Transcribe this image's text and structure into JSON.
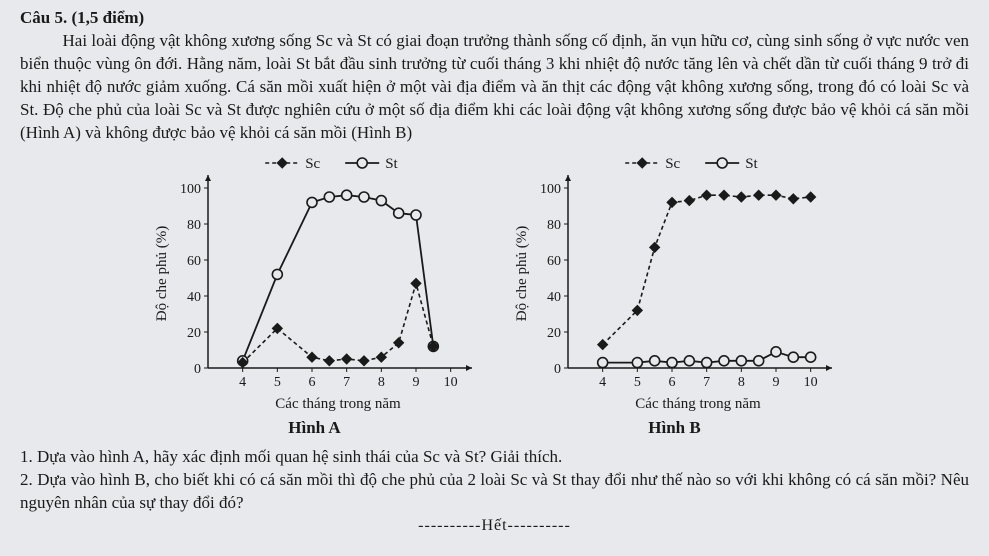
{
  "heading": "Câu 5. (1,5 điểm)",
  "paragraph": "Hai loài động vật không xương sống Sc và St có giai đoạn trưởng thành sống cố định, ăn vụn hữu cơ, cùng sinh sống ở vực nước ven biển thuộc vùng ôn đới. Hằng năm, loài St bắt đầu sinh trưởng từ cuối tháng 3 khi nhiệt độ nước tăng lên và chết dần từ cuối tháng 9 trở đi khi nhiệt độ nước giảm xuống. Cá săn mồi xuất hiện ở một vài địa điểm và ăn thịt các động vật không xương sống, trong đó có loài Sc và St. Độ che phủ của loài Sc và St được nghiên cứu ở một số địa điểm khi các loài động vật không xương sống được bảo vệ khỏi cá săn mồi (Hình A) và không được bảo vệ khỏi cá săn mồi (Hình B)",
  "chartA": {
    "type": "line",
    "title": "Hình A",
    "ylabel": "Độ che phủ (%)",
    "xlabel": "Các tháng trong năm",
    "legend": {
      "sc": "Sc",
      "st": "St"
    },
    "xlim": [
      3,
      10.5
    ],
    "ylim": [
      0,
      105
    ],
    "xticks": [
      4,
      5,
      6,
      7,
      8,
      9,
      10
    ],
    "yticks": [
      0,
      20,
      40,
      60,
      80,
      100
    ],
    "series": {
      "sc": [
        {
          "x": 4,
          "y": 3
        },
        {
          "x": 5,
          "y": 22
        },
        {
          "x": 6,
          "y": 6
        },
        {
          "x": 6.5,
          "y": 4
        },
        {
          "x": 7,
          "y": 5
        },
        {
          "x": 7.5,
          "y": 4
        },
        {
          "x": 8,
          "y": 6
        },
        {
          "x": 8.5,
          "y": 14
        },
        {
          "x": 9,
          "y": 47
        },
        {
          "x": 9.5,
          "y": 12
        }
      ],
      "st": [
        {
          "x": 4,
          "y": 4
        },
        {
          "x": 5,
          "y": 52
        },
        {
          "x": 6,
          "y": 92
        },
        {
          "x": 6.5,
          "y": 95
        },
        {
          "x": 7,
          "y": 96
        },
        {
          "x": 7.5,
          "y": 95
        },
        {
          "x": 8,
          "y": 93
        },
        {
          "x": 8.5,
          "y": 86
        },
        {
          "x": 9,
          "y": 85
        },
        {
          "x": 9.5,
          "y": 12
        }
      ]
    },
    "style": {
      "axis_color": "#1a1a1a",
      "sc_line": "#1a1a1a",
      "sc_marker": "diamond-filled",
      "sc_dash": "4 3",
      "st_line": "#1a1a1a",
      "st_marker": "circle-open",
      "st_dash": "none",
      "marker_size": 5,
      "axis_fontsize": 14,
      "label_fontsize": 15
    }
  },
  "chartB": {
    "type": "line",
    "title": "Hình B",
    "ylabel": "Độ che phủ (%)",
    "xlabel": "Các tháng trong năm",
    "legend": {
      "sc": "Sc",
      "st": "St"
    },
    "xlim": [
      3,
      10.5
    ],
    "ylim": [
      0,
      105
    ],
    "xticks": [
      4,
      5,
      6,
      7,
      8,
      9,
      10
    ],
    "yticks": [
      0,
      20,
      40,
      60,
      80,
      100
    ],
    "series": {
      "sc": [
        {
          "x": 4,
          "y": 13
        },
        {
          "x": 5,
          "y": 32
        },
        {
          "x": 5.5,
          "y": 67
        },
        {
          "x": 6,
          "y": 92
        },
        {
          "x": 6.5,
          "y": 93
        },
        {
          "x": 7,
          "y": 96
        },
        {
          "x": 7.5,
          "y": 96
        },
        {
          "x": 8,
          "y": 95
        },
        {
          "x": 8.5,
          "y": 96
        },
        {
          "x": 9,
          "y": 96
        },
        {
          "x": 9.5,
          "y": 94
        },
        {
          "x": 10,
          "y": 95
        }
      ],
      "st": [
        {
          "x": 4,
          "y": 3
        },
        {
          "x": 5,
          "y": 3
        },
        {
          "x": 5.5,
          "y": 4
        },
        {
          "x": 6,
          "y": 3
        },
        {
          "x": 6.5,
          "y": 4
        },
        {
          "x": 7,
          "y": 3
        },
        {
          "x": 7.5,
          "y": 4
        },
        {
          "x": 8,
          "y": 4
        },
        {
          "x": 8.5,
          "y": 4
        },
        {
          "x": 9,
          "y": 9
        },
        {
          "x": 9.5,
          "y": 6
        },
        {
          "x": 10,
          "y": 6
        }
      ]
    },
    "style": {
      "axis_color": "#1a1a1a",
      "sc_line": "#1a1a1a",
      "sc_marker": "diamond-filled",
      "sc_dash": "4 3",
      "st_line": "#1a1a1a",
      "st_marker": "circle-open",
      "st_dash": "none",
      "marker_size": 5,
      "axis_fontsize": 14,
      "label_fontsize": 15
    }
  },
  "questions": {
    "q1": "1. Dựa vào hình A, hãy xác định mối quan hệ sinh thái của Sc và St? Giải thích.",
    "q2": "2. Dựa vào hình B, cho biết khi có cá săn mồi thì độ che phủ của 2 loài Sc và St thay đổi như thế nào so với khi không có cá săn mồi? Nêu nguyên nhân của sự thay đổi đó?"
  },
  "footer": "----------Hết----------"
}
